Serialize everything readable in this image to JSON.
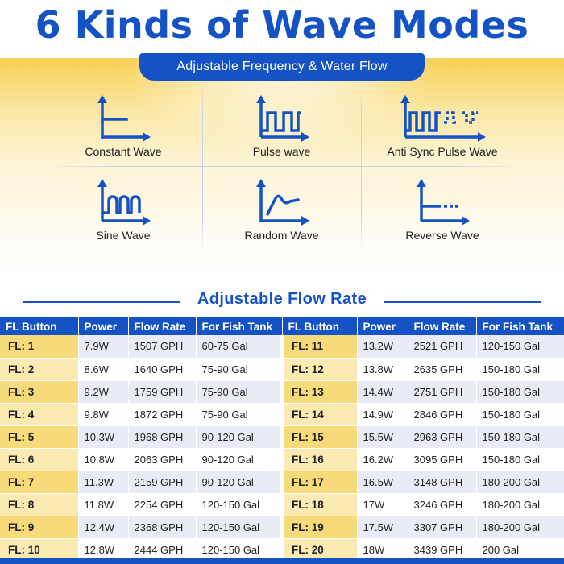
{
  "title": "6 Kinds of Wave Modes",
  "subtitle": "Adjustable Frequency & Water Flow",
  "colors": {
    "brand_blue": "#1553c5",
    "accent_yellow": "#f7da7a"
  },
  "wave_modes": [
    {
      "label": "Constant Wave",
      "icon": "constant-wave-icon"
    },
    {
      "label": "Pulse wave",
      "icon": "pulse-wave-icon"
    },
    {
      "label": "Anti Sync Pulse Wave",
      "icon": "anti-sync-pulse-wave-icon"
    },
    {
      "label": "Sine Wave",
      "icon": "sine-wave-icon"
    },
    {
      "label": "Random Wave",
      "icon": "random-wave-icon"
    },
    {
      "label": "Reverse Wave",
      "icon": "reverse-wave-icon"
    }
  ],
  "flow_rate": {
    "title": "Adjustable Flow Rate",
    "headers": [
      "FL Button",
      "Power",
      "Flow Rate",
      "For Fish Tank",
      "FL Button",
      "Power",
      "Flow Rate",
      "For Fish Tank"
    ],
    "rows": [
      [
        "FL: 1",
        "7.9W",
        "1507 GPH",
        "60-75 Gal",
        "FL: 11",
        "13.2W",
        "2521 GPH",
        "120-150 Gal"
      ],
      [
        "FL: 2",
        "8.6W",
        "1640 GPH",
        "75-90 Gal",
        "FL: 12",
        "13.8W",
        "2635 GPH",
        "150-180 Gal"
      ],
      [
        "FL: 3",
        "9.2W",
        "1759 GPH",
        "75-90 Gal",
        "FL: 13",
        "14.4W",
        "2751 GPH",
        "150-180 Gal"
      ],
      [
        "FL: 4",
        "9.8W",
        "1872 GPH",
        "75-90 Gal",
        "FL: 14",
        "14.9W",
        "2846 GPH",
        "150-180 Gal"
      ],
      [
        "FL: 5",
        "10.3W",
        "1968 GPH",
        "90-120 Gal",
        "FL: 15",
        "15.5W",
        "2963 GPH",
        "150-180 Gal"
      ],
      [
        "FL: 6",
        "10.8W",
        "2063 GPH",
        "90-120 Gal",
        "FL: 16",
        "16.2W",
        "3095 GPH",
        "150-180 Gal"
      ],
      [
        "FL: 7",
        "11.3W",
        "2159 GPH",
        "90-120 Gal",
        "FL: 17",
        "16.5W",
        "3148 GPH",
        "180-200 Gal"
      ],
      [
        "FL: 8",
        "11.8W",
        "2254 GPH",
        "120-150 Gal",
        "FL: 18",
        "17W",
        "3246 GPH",
        "180-200 Gal"
      ],
      [
        "FL: 9",
        "12.4W",
        "2368 GPH",
        "120-150 Gal",
        "FL: 19",
        "17.5W",
        "3307 GPH",
        "180-200 Gal"
      ],
      [
        "FL: 10",
        "12.8W",
        "2444 GPH",
        "120-150 Gal",
        "FL: 20",
        "18W",
        "3439 GPH",
        "200 Gal"
      ]
    ]
  }
}
